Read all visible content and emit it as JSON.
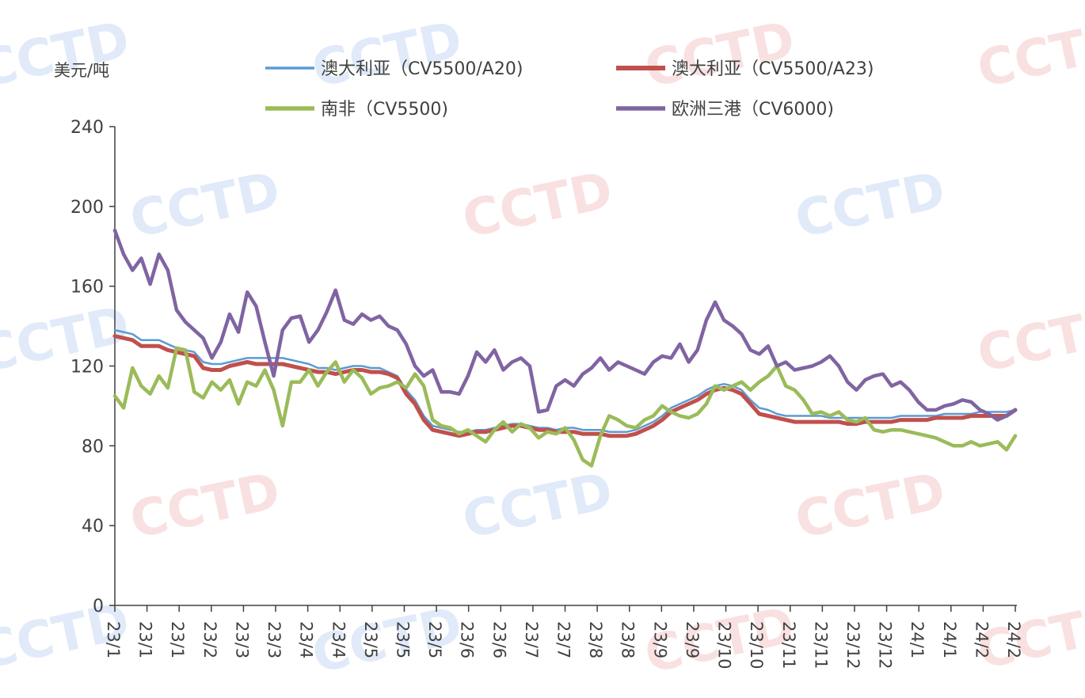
{
  "watermark": "CCTD",
  "chart_data": {
    "type": "line",
    "title": "",
    "ylabel": "美元/吨",
    "xlabel": "",
    "ylim": [
      0,
      240
    ],
    "y_ticks": [
      "0",
      "40",
      "80",
      "120",
      "160",
      "200",
      "240"
    ],
    "x_tick_labels": [
      "23/1",
      "23/1",
      "23/1",
      "23/2",
      "23/3",
      "23/3",
      "23/4",
      "23/4",
      "23/5",
      "23/5",
      "23/5",
      "23/6",
      "23/6",
      "23/7",
      "23/7",
      "23/8",
      "23/8",
      "23/9",
      "23/9",
      "23/10",
      "23/10",
      "23/11",
      "23/11",
      "23/12",
      "23/12",
      "24/1",
      "24/1",
      "24/2",
      "24/2"
    ],
    "legend": {
      "placement": "top"
    },
    "series": [
      {
        "name": "澳大利亚（CV5500/A20)",
        "color": "#5B9BD5",
        "values": [
          138,
          137,
          136,
          133,
          133,
          133,
          131,
          129,
          128,
          127,
          122,
          121,
          121,
          122,
          123,
          124,
          124,
          124,
          124,
          124,
          123,
          122,
          121,
          119,
          119,
          118,
          119,
          120,
          120,
          119,
          119,
          117,
          115,
          108,
          103,
          95,
          90,
          89,
          88,
          87,
          87,
          88,
          88,
          89,
          90,
          91,
          91,
          90,
          89,
          89,
          88,
          89,
          89,
          88,
          88,
          88,
          87,
          87,
          87,
          88,
          90,
          92,
          95,
          99,
          101,
          103,
          105,
          108,
          110,
          111,
          110,
          108,
          103,
          99,
          98,
          96,
          95,
          95,
          95,
          95,
          95,
          94,
          94,
          94,
          94,
          94,
          94,
          94,
          94,
          95,
          95,
          95,
          95,
          95,
          96,
          96,
          96,
          96,
          97,
          97,
          97,
          97,
          98
        ]
      },
      {
        "name": "澳大利亚（CV5500/A23)",
        "color": "#C0504D",
        "values": [
          135,
          134,
          133,
          130,
          130,
          130,
          128,
          127,
          126,
          125,
          119,
          118,
          118,
          120,
          121,
          122,
          121,
          121,
          121,
          121,
          120,
          119,
          118,
          117,
          117,
          116,
          117,
          118,
          118,
          117,
          117,
          116,
          114,
          106,
          101,
          93,
          88,
          87,
          86,
          85,
          86,
          87,
          87,
          88,
          89,
          90,
          90,
          89,
          88,
          88,
          87,
          87,
          87,
          86,
          86,
          86,
          85,
          85,
          85,
          86,
          88,
          90,
          93,
          97,
          99,
          101,
          103,
          106,
          108,
          109,
          108,
          106,
          101,
          96,
          95,
          94,
          93,
          92,
          92,
          92,
          92,
          92,
          92,
          91,
          91,
          92,
          92,
          92,
          92,
          93,
          93,
          93,
          93,
          94,
          94,
          94,
          94,
          95,
          95,
          95,
          95,
          95,
          98
        ]
      },
      {
        "name": "南非（CV5500)",
        "color": "#9BBB59",
        "values": [
          105,
          99,
          119,
          110,
          106,
          115,
          109,
          129,
          128,
          107,
          104,
          112,
          108,
          113,
          101,
          112,
          110,
          118,
          108,
          90,
          112,
          112,
          118,
          110,
          117,
          122,
          112,
          118,
          114,
          106,
          109,
          110,
          112,
          109,
          116,
          110,
          93,
          90,
          89,
          86,
          88,
          85,
          82,
          88,
          92,
          87,
          91,
          89,
          84,
          87,
          86,
          89,
          83,
          73,
          70,
          85,
          95,
          93,
          90,
          89,
          93,
          95,
          100,
          97,
          95,
          94,
          96,
          101,
          110,
          108,
          110,
          112,
          108,
          112,
          115,
          120,
          110,
          108,
          103,
          96,
          97,
          95,
          97,
          93,
          92,
          94,
          88,
          87,
          88,
          88,
          87,
          86,
          85,
          84,
          82,
          80,
          80,
          82,
          80,
          81,
          82,
          78,
          85
        ]
      },
      {
        "name": "欧洲三港（CV6000)",
        "color": "#8064A2",
        "values": [
          188,
          176,
          168,
          174,
          161,
          176,
          168,
          148,
          142,
          138,
          134,
          124,
          132,
          146,
          137,
          157,
          150,
          132,
          115,
          138,
          144,
          145,
          132,
          138,
          147,
          158,
          143,
          141,
          146,
          143,
          145,
          140,
          138,
          131,
          120,
          115,
          118,
          107,
          107,
          106,
          115,
          127,
          122,
          128,
          118,
          122,
          124,
          120,
          97,
          98,
          110,
          113,
          110,
          116,
          119,
          124,
          118,
          122,
          120,
          118,
          116,
          122,
          125,
          124,
          131,
          122,
          128,
          143,
          152,
          143,
          140,
          136,
          128,
          126,
          130,
          120,
          122,
          118,
          119,
          120,
          122,
          125,
          120,
          112,
          108,
          113,
          115,
          116,
          110,
          112,
          108,
          102,
          98,
          98,
          100,
          101,
          103,
          102,
          98,
          96,
          93,
          95,
          98
        ]
      }
    ]
  }
}
